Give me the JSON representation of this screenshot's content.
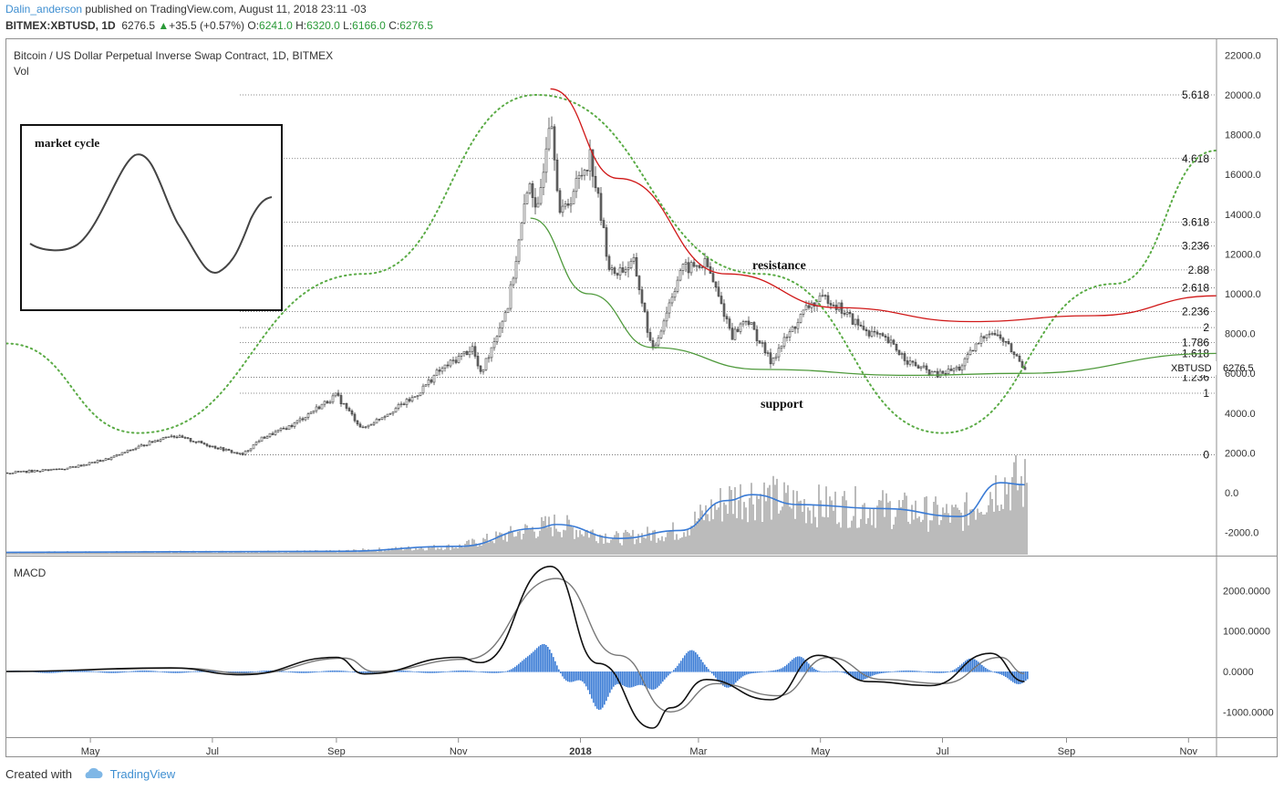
{
  "header": {
    "user": "Dalin_anderson",
    "published": "published on TradingView.com, August 11, 2018 23:11 -03",
    "symbol": "BITMEX:XBTUSD, 1D",
    "last": "6276.5",
    "change": "+35.5 (+0.57%)",
    "o_label": "O:",
    "o_val": "6241.0",
    "h_label": "H:",
    "h_val": "6320.0",
    "l_label": "L:",
    "l_val": "6166.0",
    "c_label": "C:",
    "c_val": "6276.5"
  },
  "main_pane": {
    "title": "Bitcoin / US Dollar Perpetual Inverse Swap Contract, 1D, BITMEX",
    "vol_label": "Vol",
    "price_label_symbol": "XBTUSD",
    "price_label_value": "6276.5",
    "inset_title": "market cycle",
    "resistance_label": "resistance",
    "support_label": "support"
  },
  "macd_pane": {
    "title": "MACD"
  },
  "footer": {
    "created": "Created with",
    "brand": "TradingView"
  },
  "colors": {
    "resistance": "#d01818",
    "support": "#4f9a3c",
    "cycle": "#5aab45",
    "volume_ma": "#3a7bd5",
    "macd_hist": "#3a7bd5",
    "up": "#2a9a38",
    "link": "#3f8fd1"
  },
  "chart_data": [
    {
      "type": "candlestick",
      "title": "Bitcoin / US Dollar Perpetual Inverse Swap Contract, 1D, BITMEX",
      "x_ticks": [
        "May",
        "Jul",
        "Sep",
        "Nov",
        "2018",
        "Mar",
        "May",
        "Jul",
        "Sep",
        "Nov"
      ],
      "y_ticks": [
        "22000.0",
        "20000.0",
        "18000.0",
        "16000.0",
        "14000.0",
        "12000.0",
        "10000.0",
        "8000.0",
        "6000.0",
        "4000.0",
        "2000.0",
        "0.0",
        "-2000.0"
      ],
      "ylim": [
        -3200,
        23000
      ],
      "close_series": [
        {
          "d": "2017-03-20",
          "v": 1000
        },
        {
          "d": "2017-04-01",
          "v": 1080
        },
        {
          "d": "2017-04-20",
          "v": 1230
        },
        {
          "d": "2017-05-10",
          "v": 1700
        },
        {
          "d": "2017-05-25",
          "v": 2300
        },
        {
          "d": "2017-06-10",
          "v": 2900
        },
        {
          "d": "2017-06-25",
          "v": 2500
        },
        {
          "d": "2017-07-16",
          "v": 1900
        },
        {
          "d": "2017-07-25",
          "v": 2700
        },
        {
          "d": "2017-08-10",
          "v": 3400
        },
        {
          "d": "2017-08-20",
          "v": 4100
        },
        {
          "d": "2017-09-01",
          "v": 4900
        },
        {
          "d": "2017-09-14",
          "v": 3200
        },
        {
          "d": "2017-09-25",
          "v": 3900
        },
        {
          "d": "2017-10-10",
          "v": 4800
        },
        {
          "d": "2017-10-21",
          "v": 6000
        },
        {
          "d": "2017-11-08",
          "v": 7300
        },
        {
          "d": "2017-11-12",
          "v": 5900
        },
        {
          "d": "2017-11-26",
          "v": 9500
        },
        {
          "d": "2017-12-07",
          "v": 16000
        },
        {
          "d": "2017-12-10",
          "v": 13500
        },
        {
          "d": "2017-12-17",
          "v": 19500
        },
        {
          "d": "2017-12-22",
          "v": 13800
        },
        {
          "d": "2018-01-06",
          "v": 17000
        },
        {
          "d": "2018-01-16",
          "v": 11000
        },
        {
          "d": "2018-01-28",
          "v": 11500
        },
        {
          "d": "2018-02-06",
          "v": 7000
        },
        {
          "d": "2018-02-20",
          "v": 11200
        },
        {
          "d": "2018-03-05",
          "v": 11500
        },
        {
          "d": "2018-03-18",
          "v": 7900
        },
        {
          "d": "2018-03-25",
          "v": 8800
        },
        {
          "d": "2018-04-06",
          "v": 6600
        },
        {
          "d": "2018-04-25",
          "v": 9400
        },
        {
          "d": "2018-05-05",
          "v": 9800
        },
        {
          "d": "2018-05-20",
          "v": 8400
        },
        {
          "d": "2018-06-05",
          "v": 7500
        },
        {
          "d": "2018-06-15",
          "v": 6500
        },
        {
          "d": "2018-06-28",
          "v": 5900
        },
        {
          "d": "2018-07-10",
          "v": 6300
        },
        {
          "d": "2018-07-24",
          "v": 8200
        },
        {
          "d": "2018-08-01",
          "v": 7600
        },
        {
          "d": "2018-08-11",
          "v": 6276.5
        }
      ],
      "fib_levels": [
        {
          "label": "5.618",
          "value": 20000
        },
        {
          "label": "4.618",
          "value": 16800
        },
        {
          "label": "3.618",
          "value": 13600
        },
        {
          "label": "3.236",
          "value": 12400
        },
        {
          "label": "2.88",
          "value": 11200
        },
        {
          "label": "2.618",
          "value": 10300
        },
        {
          "label": "2.236",
          "value": 9100
        },
        {
          "label": "2",
          "value": 8300
        },
        {
          "label": "1.786",
          "value": 7550
        },
        {
          "label": "1.618",
          "value": 7000
        },
        {
          "label": "1.236",
          "value": 5800
        },
        {
          "label": "1",
          "value": 5000
        },
        {
          "label": "0",
          "value": 1900
        }
      ],
      "resistance_curve": [
        {
          "d": "2017-12-17",
          "v": 20300
        },
        {
          "d": "2018-01-20",
          "v": 15800
        },
        {
          "d": "2018-03-15",
          "v": 11000
        },
        {
          "d": "2018-05-10",
          "v": 9300
        },
        {
          "d": "2018-07-15",
          "v": 8600
        },
        {
          "d": "2018-09-15",
          "v": 8900
        },
        {
          "d": "2018-11-15",
          "v": 9900
        }
      ],
      "support_curve": [
        {
          "d": "2017-12-07",
          "v": 13800
        },
        {
          "d": "2018-01-05",
          "v": 10000
        },
        {
          "d": "2018-02-06",
          "v": 7300
        },
        {
          "d": "2018-04-01",
          "v": 6200
        },
        {
          "d": "2018-06-15",
          "v": 5900
        },
        {
          "d": "2018-08-11",
          "v": 6000
        },
        {
          "d": "2018-11-15",
          "v": 7000
        }
      ],
      "cycle_curve": [
        {
          "d": "2017-03-20",
          "v": 7500
        },
        {
          "d": "2017-05-25",
          "v": 3000
        },
        {
          "d": "2017-09-15",
          "v": 11000
        },
        {
          "d": "2017-12-10",
          "v": 20000
        },
        {
          "d": "2018-04-01",
          "v": 11000
        },
        {
          "d": "2018-07-01",
          "v": 3000
        },
        {
          "d": "2018-09-25",
          "v": 10500
        },
        {
          "d": "2018-11-15",
          "v": 17200
        }
      ],
      "volume_ma_series": [
        {
          "d": "2017-03-20",
          "v": -3000
        },
        {
          "d": "2017-09-01",
          "v": -2950
        },
        {
          "d": "2017-11-01",
          "v": -2700
        },
        {
          "d": "2017-12-10",
          "v": -1800
        },
        {
          "d": "2017-12-20",
          "v": -1600
        },
        {
          "d": "2018-01-20",
          "v": -2300
        },
        {
          "d": "2018-02-20",
          "v": -1900
        },
        {
          "d": "2018-03-15",
          "v": -400
        },
        {
          "d": "2018-03-28",
          "v": -100
        },
        {
          "d": "2018-04-20",
          "v": -600
        },
        {
          "d": "2018-06-01",
          "v": -800
        },
        {
          "d": "2018-07-10",
          "v": -1200
        },
        {
          "d": "2018-07-30",
          "v": 500
        },
        {
          "d": "2018-08-11",
          "v": 400
        }
      ]
    },
    {
      "type": "line",
      "title": "MACD",
      "y_ticks": [
        "2000.0000",
        "1000.0000",
        "0.0000",
        "-1000.0000"
      ],
      "ylim": [
        -1650,
        2750
      ],
      "macd_series": [
        {
          "d": "2017-03-20",
          "v": 0
        },
        {
          "d": "2017-06-10",
          "v": 90
        },
        {
          "d": "2017-07-16",
          "v": -80
        },
        {
          "d": "2017-09-01",
          "v": 350
        },
        {
          "d": "2017-09-15",
          "v": -60
        },
        {
          "d": "2017-11-01",
          "v": 350
        },
        {
          "d": "2017-11-12",
          "v": 220
        },
        {
          "d": "2017-12-17",
          "v": 2600
        },
        {
          "d": "2018-01-10",
          "v": 200
        },
        {
          "d": "2018-02-06",
          "v": -1400
        },
        {
          "d": "2018-02-15",
          "v": -900
        },
        {
          "d": "2018-03-05",
          "v": -200
        },
        {
          "d": "2018-04-06",
          "v": -700
        },
        {
          "d": "2018-04-30",
          "v": 400
        },
        {
          "d": "2018-05-25",
          "v": -250
        },
        {
          "d": "2018-06-25",
          "v": -350
        },
        {
          "d": "2018-07-25",
          "v": 450
        },
        {
          "d": "2018-08-11",
          "v": -250
        }
      ],
      "signal_series": [
        {
          "d": "2017-03-20",
          "v": 0
        },
        {
          "d": "2017-06-15",
          "v": 80
        },
        {
          "d": "2017-07-20",
          "v": -50
        },
        {
          "d": "2017-09-05",
          "v": 330
        },
        {
          "d": "2017-09-20",
          "v": 0
        },
        {
          "d": "2017-11-05",
          "v": 300
        },
        {
          "d": "2017-12-20",
          "v": 2300
        },
        {
          "d": "2018-01-20",
          "v": 400
        },
        {
          "d": "2018-02-15",
          "v": -1000
        },
        {
          "d": "2018-03-10",
          "v": -300
        },
        {
          "d": "2018-04-10",
          "v": -600
        },
        {
          "d": "2018-05-05",
          "v": 350
        },
        {
          "d": "2018-06-01",
          "v": -200
        },
        {
          "d": "2018-07-01",
          "v": -300
        },
        {
          "d": "2018-07-30",
          "v": 350
        },
        {
          "d": "2018-08-11",
          "v": -50
        }
      ],
      "histogram": [
        {
          "d": "2017-12-05",
          "v": 250
        },
        {
          "d": "2017-12-14",
          "v": 650
        },
        {
          "d": "2017-12-26",
          "v": -250
        },
        {
          "d": "2018-01-10",
          "v": -950
        },
        {
          "d": "2018-01-25",
          "v": -350
        },
        {
          "d": "2018-02-06",
          "v": -450
        },
        {
          "d": "2018-02-25",
          "v": 550
        },
        {
          "d": "2018-03-15",
          "v": -400
        },
        {
          "d": "2018-04-20",
          "v": 380
        },
        {
          "d": "2018-05-20",
          "v": -200
        },
        {
          "d": "2018-07-15",
          "v": 300
        },
        {
          "d": "2018-08-08",
          "v": -300
        }
      ]
    }
  ]
}
